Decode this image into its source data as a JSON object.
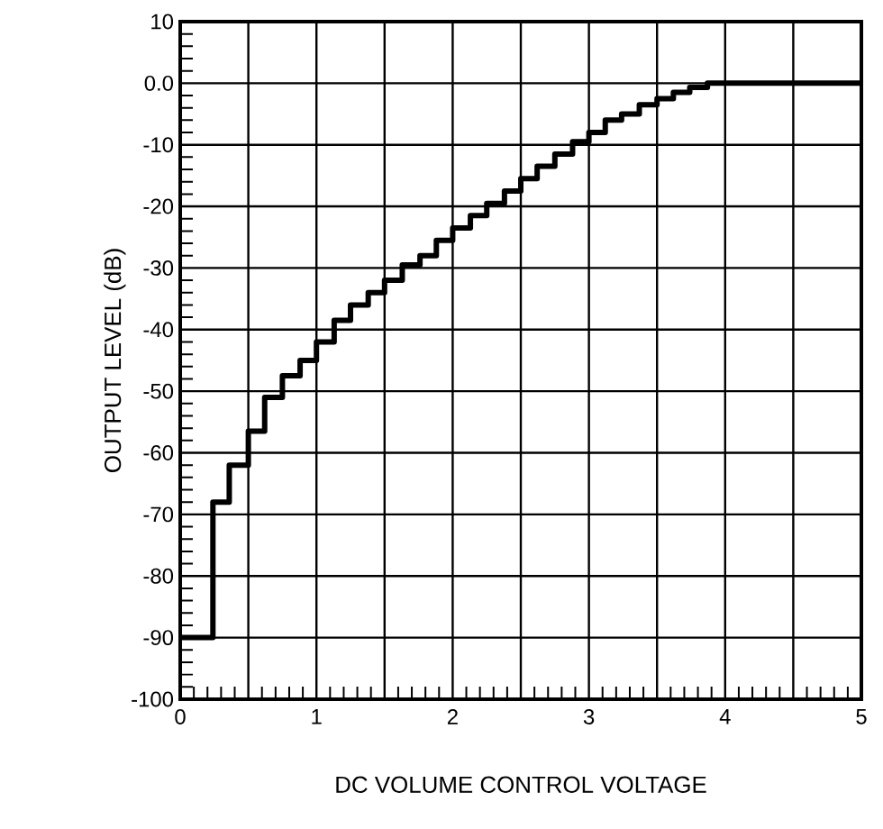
{
  "chart_data": {
    "type": "step",
    "xlabel": "DC VOLUME CONTROL VOLTAGE",
    "ylabel": "OUTPUT LEVEL (dB)",
    "x": [
      0,
      0.24,
      0.36,
      0.5,
      0.62,
      0.75,
      0.88,
      1.0,
      1.13,
      1.25,
      1.38,
      1.5,
      1.63,
      1.76,
      1.88,
      2.0,
      2.13,
      2.25,
      2.38,
      2.5,
      2.62,
      2.75,
      2.88,
      3.0,
      3.12,
      3.24,
      3.37,
      3.5,
      3.62,
      3.74,
      3.87,
      5
    ],
    "values": [
      -90,
      -68,
      -62,
      -56.5,
      -51,
      -47.5,
      -45,
      -42,
      -38.5,
      -36,
      -34,
      -32,
      -29.5,
      -28,
      -25.5,
      -23.5,
      -21.5,
      -19.5,
      -17.5,
      -15.5,
      -13.5,
      -11.5,
      -9.5,
      -8,
      -6,
      -5,
      -3.5,
      -2.5,
      -1.5,
      -0.7,
      0,
      0
    ],
    "color": "#000000",
    "xlim": [
      0,
      5
    ],
    "ylim": [
      -100,
      10
    ],
    "xticks": [
      0,
      {
        "value": 0.5,
        "label": null
      },
      1,
      {
        "value": 1.5,
        "label": null
      },
      2,
      {
        "value": 2.5,
        "label": null
      },
      3,
      {
        "value": 3.5,
        "label": null
      },
      4,
      {
        "value": 4.5,
        "label": null
      },
      5
    ],
    "yticks": [
      -100,
      -90,
      -80,
      -70,
      -60,
      -50,
      -40,
      -30,
      -20,
      -10,
      {
        "value": 0,
        "label": "0.0"
      },
      10
    ],
    "grid": true,
    "marker": "none",
    "line_style": "solid"
  }
}
